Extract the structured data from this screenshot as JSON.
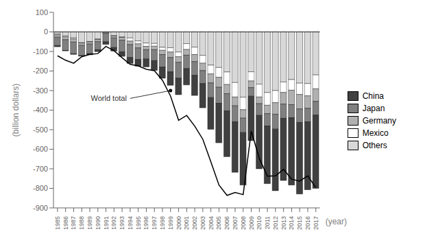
{
  "chart_data": {
    "type": "bar",
    "stacked": true,
    "categories": [
      1985,
      1986,
      1987,
      1988,
      1989,
      1990,
      1991,
      1992,
      1993,
      1994,
      1995,
      1996,
      1997,
      1998,
      1999,
      2000,
      2001,
      2002,
      2003,
      2004,
      2005,
      2006,
      2007,
      2008,
      2009,
      2010,
      2011,
      2012,
      2013,
      2014,
      2015,
      2016,
      2017
    ],
    "series": [
      {
        "name": "Others",
        "color": "#d8d8d8",
        "values": [
          -10,
          -20,
          -30,
          -55,
          -49,
          -36,
          -4,
          -18,
          -26,
          -31,
          -46,
          -57,
          -59,
          -79,
          -81,
          -103,
          -60,
          -78,
          -120,
          -170,
          -182,
          -205,
          -259,
          -334,
          -204,
          -267,
          -310,
          -300,
          -256,
          -244,
          -262,
          -264,
          -220
        ]
      },
      {
        "name": "Mexico",
        "color": "#ffffff",
        "values": [
          -5,
          -5,
          -6,
          -2,
          -2,
          -3,
          2,
          -4,
          -2,
          -16,
          -15,
          -17,
          -14,
          -15,
          -22,
          -24,
          -30,
          -38,
          -40,
          -45,
          -50,
          -64,
          -74,
          -64,
          -47,
          -66,
          -65,
          -62,
          -54,
          -54,
          -58,
          -63,
          -71
        ]
      },
      {
        "name": "Germany",
        "color": "#b0b0b0",
        "values": [
          -12,
          -15,
          -16,
          -12,
          -11,
          -11,
          -6,
          -9,
          -14,
          -18,
          -21,
          -17,
          -18,
          -22,
          -28,
          -29,
          -29,
          -36,
          -38,
          -46,
          -51,
          -47,
          -45,
          -43,
          -34,
          -34,
          -43,
          -59,
          -59,
          -74,
          -74,
          -64,
          -64
        ]
      },
      {
        "name": "Japan",
        "color": "#808080",
        "values": [
          -43,
          -55,
          -60,
          -52,
          -49,
          -41,
          -43,
          -49,
          -60,
          -66,
          -59,
          -48,
          -56,
          -64,
          -73,
          -81,
          -69,
          -70,
          -66,
          -75,
          -82,
          -88,
          -82,
          -74,
          -44,
          -60,
          -63,
          -76,
          -73,
          -67,
          -69,
          -69,
          -70
        ]
      },
      {
        "name": "China",
        "color": "#404040",
        "values": [
          -6,
          -2,
          -3,
          -3,
          -6,
          -10,
          -13,
          -18,
          -23,
          -30,
          -34,
          -40,
          -50,
          -57,
          -69,
          -84,
          -83,
          -103,
          -124,
          -162,
          -202,
          -234,
          -258,
          -268,
          -227,
          -273,
          -295,
          -315,
          -318,
          -344,
          -366,
          -347,
          -375
        ]
      },
      {
        "type": "line",
        "color": "#000000",
        "values": [
          -122,
          -145,
          -160,
          -127,
          -115,
          -111,
          -74,
          -96,
          -132,
          -166,
          -174,
          -191,
          -198,
          -247,
          -328,
          -452,
          -427,
          -482,
          -549,
          -665,
          -783,
          -836,
          -821,
          -832,
          -507,
          -647,
          -738,
          -736,
          -703,
          -753,
          -763,
          -736,
          -796
        ]
      }
    ],
    "ylabel": "(billion dollars)",
    "xlabel": "(year)",
    "ylim": [
      -900,
      100
    ],
    "yticks": [
      100,
      0,
      -100,
      -200,
      -300,
      -400,
      -500,
      -600,
      -700,
      -800,
      -900
    ],
    "grid": false,
    "legend": "right",
    "annotations": [
      {
        "text": "World total",
        "x": 1994,
        "y": -340,
        "arrow_to": [
          1999,
          -300
        ]
      }
    ]
  }
}
